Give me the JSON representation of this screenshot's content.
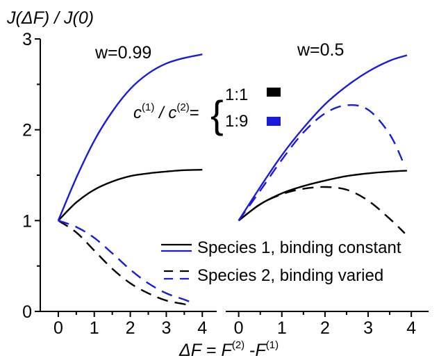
{
  "chart_data": [
    {
      "type": "line",
      "panel": "left",
      "title": "w=0.99",
      "ylabel": "J(ΔF) / J(0)",
      "xlabel": "ΔF = F(2) - F(1)",
      "xlim": [
        -0.5,
        4.4
      ],
      "ylim": [
        0,
        3
      ],
      "xticks": [
        "0",
        "1",
        "2",
        "3",
        "4"
      ],
      "yticks": [
        "0",
        "1",
        "2",
        "3"
      ],
      "series": [
        {
          "ratio": "1:1",
          "species": 1,
          "color": "#000000",
          "dash": "solid",
          "x": [
            0,
            0.5,
            1,
            1.5,
            2,
            2.5,
            3,
            3.5,
            4
          ],
          "y": [
            1.0,
            1.2,
            1.34,
            1.43,
            1.49,
            1.52,
            1.54,
            1.555,
            1.56
          ]
        },
        {
          "ratio": "1:9",
          "species": 1,
          "color": "#1a1adb",
          "dash": "solid",
          "x": [
            0,
            0.5,
            1,
            1.5,
            2,
            2.5,
            3,
            3.5,
            4
          ],
          "y": [
            1.0,
            1.47,
            1.88,
            2.2,
            2.45,
            2.62,
            2.73,
            2.79,
            2.83
          ]
        },
        {
          "ratio": "1:1",
          "species": 2,
          "color": "#000000",
          "dash": "dashed",
          "x": [
            0,
            0.5,
            1,
            1.5,
            2,
            2.5,
            3,
            3.5,
            3.7
          ],
          "y": [
            1.0,
            0.87,
            0.67,
            0.47,
            0.31,
            0.2,
            0.12,
            0.08,
            0.06
          ]
        },
        {
          "ratio": "1:9",
          "species": 2,
          "color": "#1a1adb",
          "dash": "dashed",
          "x": [
            0,
            0.5,
            1,
            1.5,
            2,
            2.5,
            3,
            3.5,
            3.7
          ],
          "y": [
            1.0,
            0.93,
            0.81,
            0.64,
            0.46,
            0.31,
            0.2,
            0.13,
            0.1
          ]
        }
      ]
    },
    {
      "type": "line",
      "panel": "right",
      "title": "w=0.5",
      "xlim": [
        -0.3,
        4.4
      ],
      "ylim": [
        0,
        3
      ],
      "xticks": [
        "0",
        "1",
        "2",
        "3",
        "4"
      ],
      "series": [
        {
          "ratio": "1:1",
          "species": 1,
          "color": "#000000",
          "dash": "solid",
          "x": [
            0,
            0.5,
            1,
            1.5,
            2,
            2.5,
            3,
            3.5,
            3.9
          ],
          "y": [
            1.0,
            1.18,
            1.3,
            1.38,
            1.44,
            1.49,
            1.52,
            1.54,
            1.55
          ]
        },
        {
          "ratio": "1:9",
          "species": 1,
          "color": "#1a1adb",
          "dash": "solid",
          "x": [
            0,
            0.5,
            1,
            1.5,
            2,
            2.5,
            3,
            3.5,
            3.9
          ],
          "y": [
            1.0,
            1.37,
            1.72,
            2.02,
            2.28,
            2.48,
            2.64,
            2.76,
            2.82
          ]
        },
        {
          "ratio": "1:1",
          "species": 2,
          "color": "#000000",
          "dash": "dashed",
          "x": [
            0,
            0.5,
            1,
            1.5,
            2,
            2.5,
            3,
            3.5,
            3.85
          ],
          "y": [
            1.0,
            1.18,
            1.29,
            1.35,
            1.37,
            1.34,
            1.22,
            1.02,
            0.86
          ]
        },
        {
          "ratio": "1:9",
          "species": 2,
          "color": "#1a1adb",
          "dash": "dashed",
          "x": [
            0,
            0.5,
            1,
            1.5,
            2,
            2.5,
            3,
            3.5,
            3.85
          ],
          "y": [
            1.0,
            1.33,
            1.67,
            1.97,
            2.18,
            2.27,
            2.22,
            1.95,
            1.6
          ]
        }
      ]
    }
  ],
  "ratio_legend": {
    "label_main": "c",
    "sup1": "(1)",
    "slash": " / c",
    "sup2": "(2)",
    "eq": "=",
    "brace": "{",
    "items": [
      {
        "label": "1:1",
        "color": "#000000"
      },
      {
        "label": "1:9",
        "color": "#1a1adb"
      }
    ]
  },
  "line_legend": [
    {
      "label": "Species 1, binding constant",
      "dash": "solid"
    },
    {
      "label": "Species 2, binding varied",
      "dash": "dashed"
    }
  ]
}
